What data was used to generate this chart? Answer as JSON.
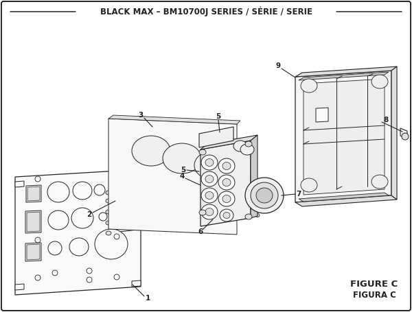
{
  "title": "BLACK MAX – BM10700J SERIES / SÉRIE / SERIE",
  "figure_label_1": "FIGURE C",
  "figure_label_2": "FIGURA C",
  "bg_color": "#ffffff",
  "border_color": "#000000",
  "line_color": "#222222",
  "fill_light": "#f0f0f0",
  "fill_mid": "#e0e0e0",
  "fill_dark": "#cccccc",
  "fill_white": "#f9f9f9"
}
